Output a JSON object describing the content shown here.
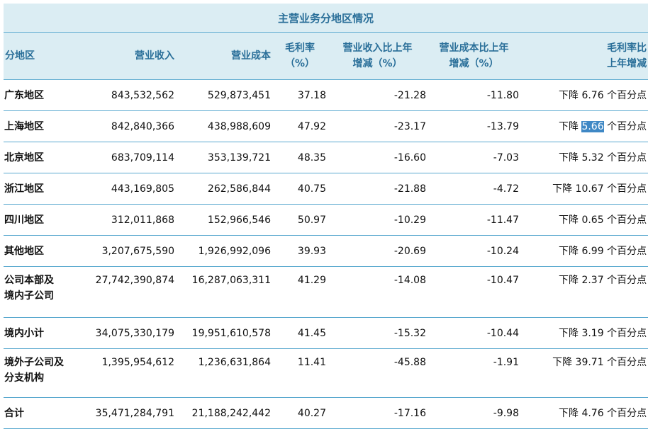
{
  "table": {
    "title": "主营业务分地区情况",
    "headers": {
      "region": "分地区",
      "revenue": "营业收入",
      "cost": "营业成本",
      "margin_1": "毛利率",
      "margin_2": "（%）",
      "rev_change_1": "营业收入比上年",
      "rev_change_2": "增减（%）",
      "cost_change_1": "营业成本比上年",
      "cost_change_2": "增减（%）",
      "margin_change_1": "毛利率比",
      "margin_change_2": "上年增减"
    },
    "rows": [
      {
        "region_1": "广东地区",
        "region_2": "",
        "revenue": "843,532,562",
        "cost": "529,873,451",
        "margin": "37.18",
        "rev_change": "-21.28",
        "cost_change": "-11.80",
        "mc_prefix": "下降",
        "mc_value": "6.76",
        "mc_suffix": "个百分点"
      },
      {
        "region_1": "上海地区",
        "region_2": "",
        "revenue": "842,840,366",
        "cost": "438,988,609",
        "margin": "47.92",
        "rev_change": "-23.17",
        "cost_change": "-13.79",
        "mc_prefix": "下降",
        "mc_value": "5.66",
        "mc_suffix": "个百分点"
      },
      {
        "region_1": "北京地区",
        "region_2": "",
        "revenue": "683,709,114",
        "cost": "353,139,721",
        "margin": "48.35",
        "rev_change": "-16.60",
        "cost_change": "-7.03",
        "mc_prefix": "下降",
        "mc_value": "5.32",
        "mc_suffix": "个百分点"
      },
      {
        "region_1": "浙江地区",
        "region_2": "",
        "revenue": "443,169,805",
        "cost": "262,586,844",
        "margin": "40.75",
        "rev_change": "-21.88",
        "cost_change": "-4.72",
        "mc_prefix": "下降",
        "mc_value": "10.67",
        "mc_suffix": "个百分点"
      },
      {
        "region_1": "四川地区",
        "region_2": "",
        "revenue": "312,011,868",
        "cost": "152,966,546",
        "margin": "50.97",
        "rev_change": "-10.29",
        "cost_change": "-11.47",
        "mc_prefix": "下降",
        "mc_value": "0.65",
        "mc_suffix": "个百分点"
      },
      {
        "region_1": "其他地区",
        "region_2": "",
        "revenue": "3,207,675,590",
        "cost": "1,926,992,096",
        "margin": "39.93",
        "rev_change": "-20.69",
        "cost_change": "-10.24",
        "mc_prefix": "下降",
        "mc_value": "6.99",
        "mc_suffix": "个百分点"
      },
      {
        "region_1": "公司本部及",
        "region_2": "境内子公司",
        "revenue": "27,742,390,874",
        "cost": "16,287,063,311",
        "margin": "41.29",
        "rev_change": "-14.08",
        "cost_change": "-10.47",
        "mc_prefix": "下降",
        "mc_value": "2.37",
        "mc_suffix": "个百分点"
      },
      {
        "region_1": "境内小计",
        "region_2": "",
        "revenue": "34,075,330,179",
        "cost": "19,951,610,578",
        "margin": "41.45",
        "rev_change": "-15.32",
        "cost_change": "-10.44",
        "mc_prefix": "下降",
        "mc_value": "3.19",
        "mc_suffix": "个百分点"
      },
      {
        "region_1": "境外子公司及",
        "region_2": "分支机构",
        "revenue": "1,395,954,612",
        "cost": "1,236,631,864",
        "margin": "11.41",
        "rev_change": "-45.88",
        "cost_change": "-1.91",
        "mc_prefix": "下降",
        "mc_value": "39.71",
        "mc_suffix": "个百分点"
      },
      {
        "region_1": "合计",
        "region_2": "",
        "revenue": "35,471,284,791",
        "cost": "21,188,242,442",
        "margin": "40.27",
        "rev_change": "-17.16",
        "cost_change": "-9.98",
        "mc_prefix": "下降",
        "mc_value": "4.76",
        "mc_suffix": "个百分点"
      }
    ],
    "colors": {
      "header_bg": "#dbedf3",
      "header_text": "#2a6f99",
      "rule": "#5aa9cf",
      "selection": "#3f88c5"
    }
  }
}
